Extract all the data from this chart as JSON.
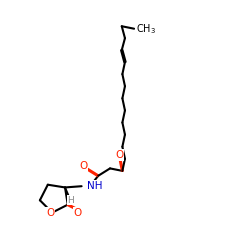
{
  "bg": "#ffffff",
  "bond_color": "#000000",
  "O_color": "#ff2200",
  "N_color": "#0000cc",
  "H_color": "#888888",
  "lw": 1.5,
  "fs": 7.5,
  "fs_small": 6.5,
  "xlim": [
    0,
    10
  ],
  "ylim": [
    0,
    10
  ]
}
